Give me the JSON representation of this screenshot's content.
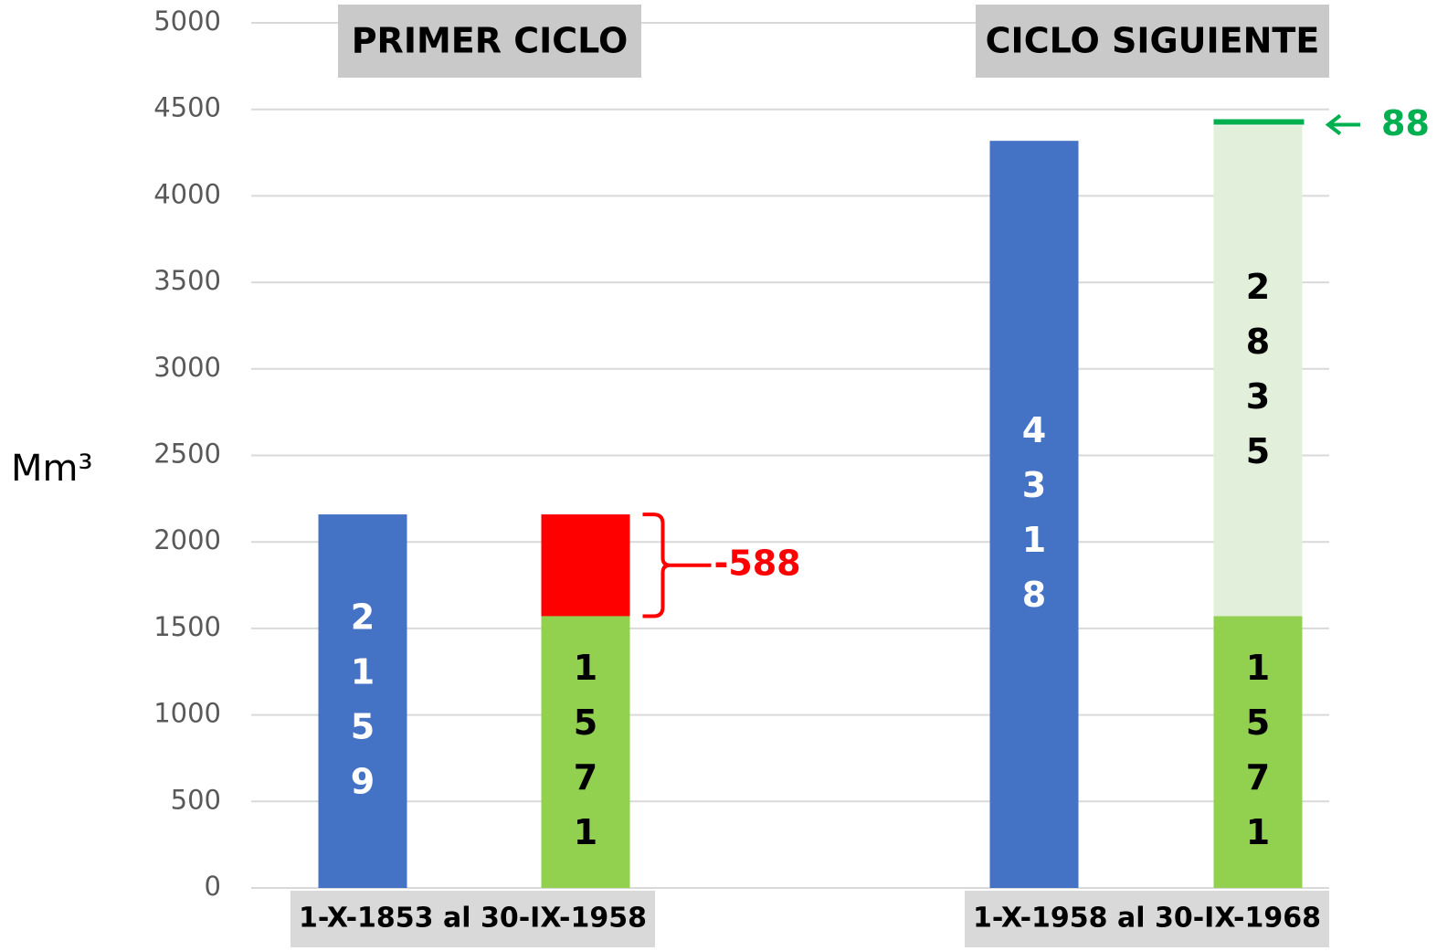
{
  "chart_data": {
    "type": "bar",
    "stacked": true,
    "y_label": "Mm³",
    "ylim": [
      0,
      5000
    ],
    "yticks": [
      0,
      500,
      1000,
      1500,
      2000,
      2500,
      3000,
      3500,
      4000,
      4500,
      5000
    ],
    "grid": true,
    "groups": [
      {
        "title": "PRIMER CICLO",
        "label": "1-X-1853 al 30-IX-1958",
        "bars": [
          {
            "segments": [
              {
                "value": 2159,
                "color": "#4472c4",
                "label_color": "#ffffff"
              }
            ]
          },
          {
            "segments": [
              {
                "value": 1571,
                "color": "#92d050",
                "label_color": "#000000"
              },
              {
                "value": 588,
                "color": "#ff0000",
                "annotation": "-588",
                "annotation_color": "#ff0000"
              }
            ]
          }
        ]
      },
      {
        "title": "CICLO SIGUIENTE",
        "label": "1-X-1958 al 30-IX-1968",
        "bars": [
          {
            "segments": [
              {
                "value": 4318,
                "color": "#4472c4",
                "label_color": "#ffffff"
              }
            ]
          },
          {
            "segments": [
              {
                "value": 1571,
                "color": "#92d050",
                "label_color": "#000000"
              },
              {
                "value": 2835,
                "color": "#e2efda",
                "label_color": "#000000"
              }
            ],
            "top_annotation": "88",
            "top_annotation_color": "#00b050"
          }
        ]
      }
    ]
  }
}
